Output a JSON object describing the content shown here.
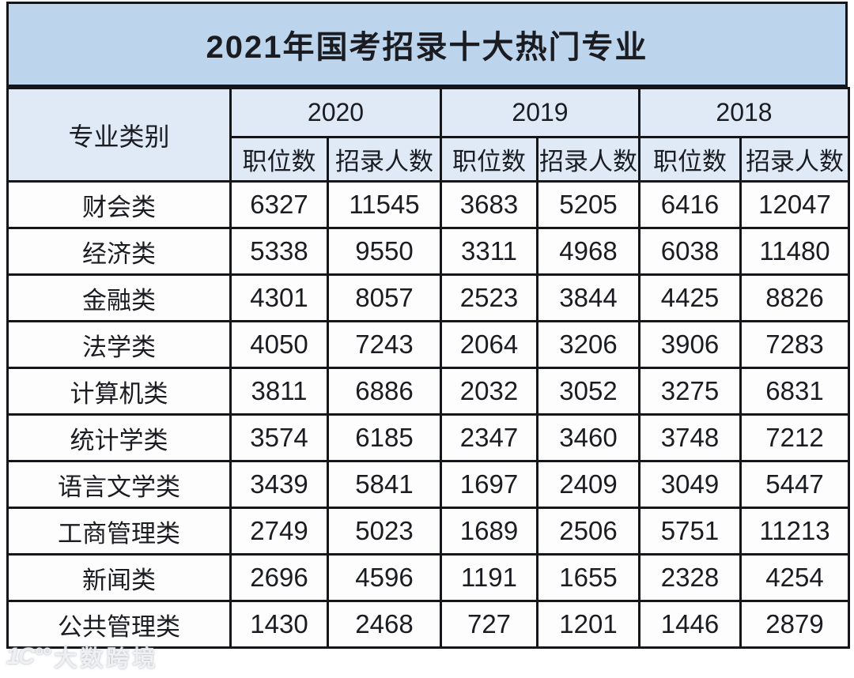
{
  "title": "2021年国考招录十大热门专业",
  "chart_data": {
    "type": "table",
    "title": "2021年国考招录十大热门专业",
    "category_header": "专业类别",
    "year_groups": [
      {
        "year": "2020",
        "sub": [
          "职位数",
          "招录人数"
        ]
      },
      {
        "year": "2019",
        "sub": [
          "职位数",
          "招录人数"
        ]
      },
      {
        "year": "2018",
        "sub": [
          "职位数",
          "招录人数"
        ]
      }
    ],
    "rows": [
      {
        "category": "财会类",
        "values": [
          6327,
          11545,
          3683,
          5205,
          6416,
          12047
        ]
      },
      {
        "category": "经济类",
        "values": [
          5338,
          9550,
          3311,
          4968,
          6038,
          11480
        ]
      },
      {
        "category": "金融类",
        "values": [
          4301,
          8057,
          2523,
          3844,
          4425,
          8826
        ]
      },
      {
        "category": "法学类",
        "values": [
          4050,
          7243,
          2064,
          3206,
          3906,
          7283
        ]
      },
      {
        "category": "计算机类",
        "values": [
          3811,
          6886,
          2032,
          3052,
          3275,
          6831
        ]
      },
      {
        "category": "统计学类",
        "values": [
          3574,
          6185,
          2347,
          3460,
          3748,
          7212
        ]
      },
      {
        "category": "语言文学类",
        "values": [
          3439,
          5841,
          1697,
          2409,
          3049,
          5447
        ]
      },
      {
        "category": "工商管理类",
        "values": [
          2749,
          5023,
          1689,
          2506,
          5751,
          11213
        ]
      },
      {
        "category": "新闻类",
        "values": [
          2696,
          4596,
          1191,
          1655,
          2328,
          4254
        ]
      },
      {
        "category": "公共管理类",
        "values": [
          1430,
          2468,
          727,
          1201,
          1446,
          2879
        ]
      }
    ]
  },
  "watermark": {
    "logo_glyph": "1C°°",
    "text": "大数跨境"
  },
  "colors": {
    "title_bg": "#bdd5ec",
    "header_bg": "#dfeaf6",
    "cell_bg": "#fdfdfd",
    "border": "#15161a",
    "text": "#1b1c22",
    "page_bg": "#ffffff"
  }
}
